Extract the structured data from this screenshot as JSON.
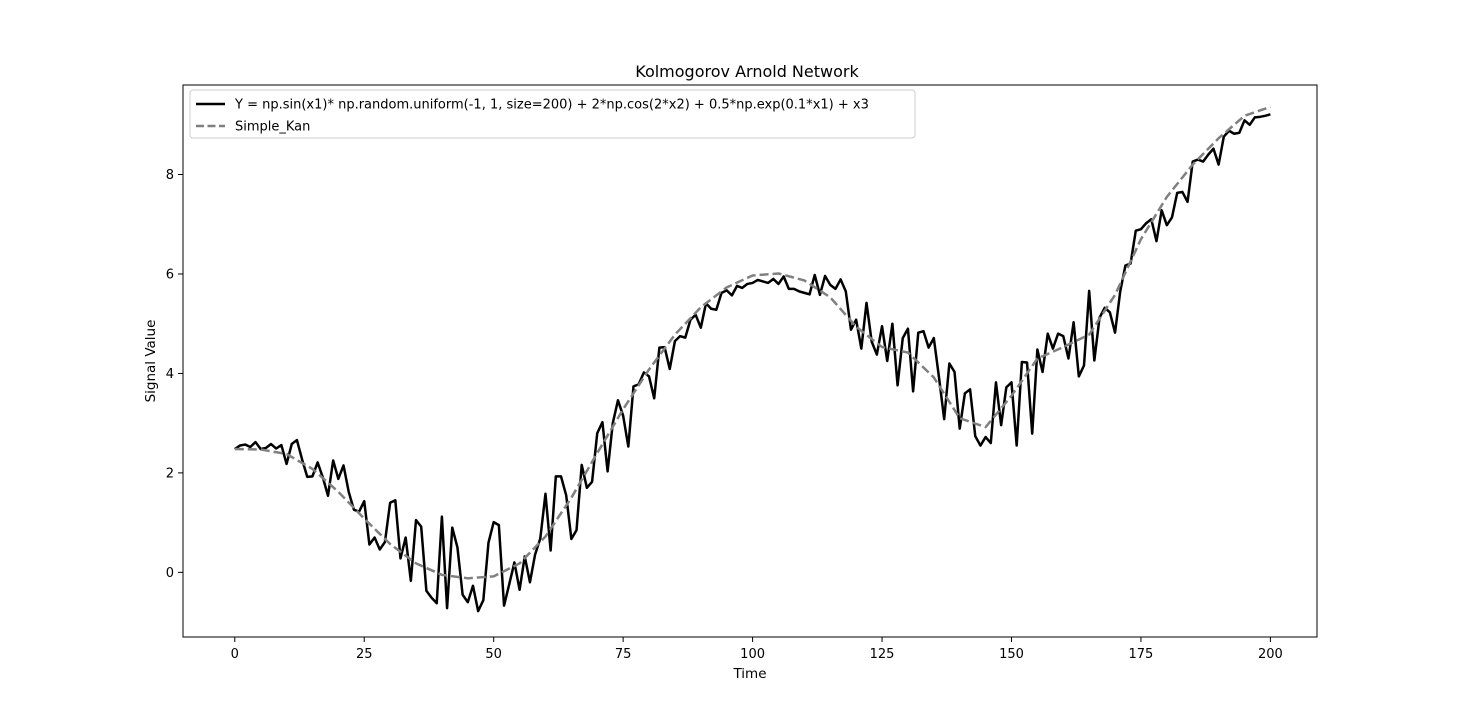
{
  "chart_data": {
    "type": "line",
    "title": "Kolmogorov Arnold Network",
    "xlabel": "Time",
    "ylabel": "Signal Value",
    "xlim": [
      -10,
      209
    ],
    "ylim": [
      -1.3,
      9.8
    ],
    "xticks": [
      0,
      25,
      50,
      75,
      100,
      125,
      150,
      175,
      200
    ],
    "yticks": [
      0,
      2,
      4,
      6,
      8
    ],
    "grid": false,
    "legend_position": "top-left",
    "series": [
      {
        "name": "Y = np.sin(x1)* np.random.uniform(-1, 1, size=200) + 2*np.cos(2*x2) + 0.5*np.exp(0.1*x1) + x3",
        "color": "#000000",
        "style": "solid",
        "x_start": 0,
        "x_step": 1,
        "values": [
          2.48,
          2.55,
          2.57,
          2.52,
          2.62,
          2.48,
          2.5,
          2.58,
          2.49,
          2.56,
          2.18,
          2.58,
          2.66,
          2.27,
          1.92,
          1.93,
          2.21,
          1.91,
          1.54,
          2.25,
          1.88,
          2.15,
          1.62,
          1.26,
          1.22,
          1.43,
          0.56,
          0.7,
          0.46,
          0.61,
          1.4,
          1.45,
          0.28,
          0.7,
          -0.17,
          1.05,
          0.92,
          -0.37,
          -0.51,
          -0.62,
          1.12,
          -0.72,
          0.9,
          0.5,
          -0.45,
          -0.6,
          -0.27,
          -0.78,
          -0.56,
          0.6,
          1.01,
          0.95,
          -0.67,
          -0.24,
          0.2,
          -0.35,
          0.32,
          -0.2,
          0.36,
          0.68,
          1.58,
          0.44,
          1.93,
          1.93,
          1.55,
          0.67,
          0.85,
          2.16,
          1.7,
          1.82,
          2.8,
          3.02,
          2.03,
          3.0,
          3.46,
          3.15,
          2.53,
          3.74,
          3.78,
          4.02,
          3.94,
          3.5,
          4.52,
          4.53,
          4.09,
          4.65,
          4.75,
          4.72,
          5.08,
          5.18,
          4.92,
          5.41,
          5.3,
          5.28,
          5.62,
          5.67,
          5.57,
          5.76,
          5.72,
          5.8,
          5.82,
          5.88,
          5.85,
          5.82,
          5.9,
          5.8,
          5.95,
          5.7,
          5.7,
          5.65,
          5.62,
          5.59,
          5.98,
          5.58,
          5.96,
          5.78,
          5.7,
          5.89,
          5.65,
          4.88,
          5.08,
          4.5,
          5.42,
          4.64,
          4.38,
          4.95,
          4.25,
          5.0,
          3.76,
          4.71,
          4.9,
          3.64,
          4.82,
          4.85,
          4.52,
          4.71,
          3.92,
          3.08,
          4.2,
          4.03,
          2.89,
          3.6,
          3.68,
          2.74,
          2.55,
          2.72,
          2.6,
          3.82,
          2.96,
          3.72,
          3.82,
          2.55,
          4.23,
          4.22,
          2.79,
          4.48,
          4.03,
          4.8,
          4.5,
          4.8,
          4.75,
          4.3,
          5.03,
          3.94,
          4.16,
          5.66,
          4.26,
          5.12,
          5.32,
          5.23,
          4.82,
          5.65,
          6.17,
          6.21,
          6.87,
          6.9,
          7.02,
          7.1,
          6.66,
          7.28,
          6.98,
          7.14,
          7.63,
          7.65,
          7.45,
          8.26,
          8.3,
          8.26,
          8.4,
          8.52,
          8.2,
          8.76,
          8.88,
          8.82,
          8.84,
          9.09,
          9.0,
          9.15,
          9.16,
          9.18,
          9.21
        ]
      },
      {
        "name": "Simple_Kan",
        "color": "#808080",
        "style": "dashed",
        "x": [
          0,
          5,
          10,
          15,
          20,
          25,
          30,
          35,
          40,
          45,
          50,
          55,
          60,
          65,
          70,
          75,
          80,
          85,
          90,
          95,
          100,
          105,
          110,
          115,
          120,
          125,
          130,
          135,
          140,
          145,
          150,
          155,
          160,
          165,
          170,
          175,
          180,
          185,
          190,
          195,
          200
        ],
        "values": [
          2.48,
          2.47,
          2.38,
          2.08,
          1.62,
          1.08,
          0.57,
          0.18,
          -0.05,
          -0.12,
          -0.08,
          0.18,
          0.72,
          1.5,
          2.4,
          3.28,
          4.08,
          4.78,
          5.33,
          5.73,
          5.97,
          6.01,
          5.87,
          5.53,
          4.94,
          4.53,
          4.42,
          3.92,
          3.1,
          2.92,
          3.55,
          4.3,
          4.53,
          4.78,
          5.58,
          6.7,
          7.55,
          8.2,
          8.73,
          9.18,
          9.36
        ]
      }
    ]
  }
}
